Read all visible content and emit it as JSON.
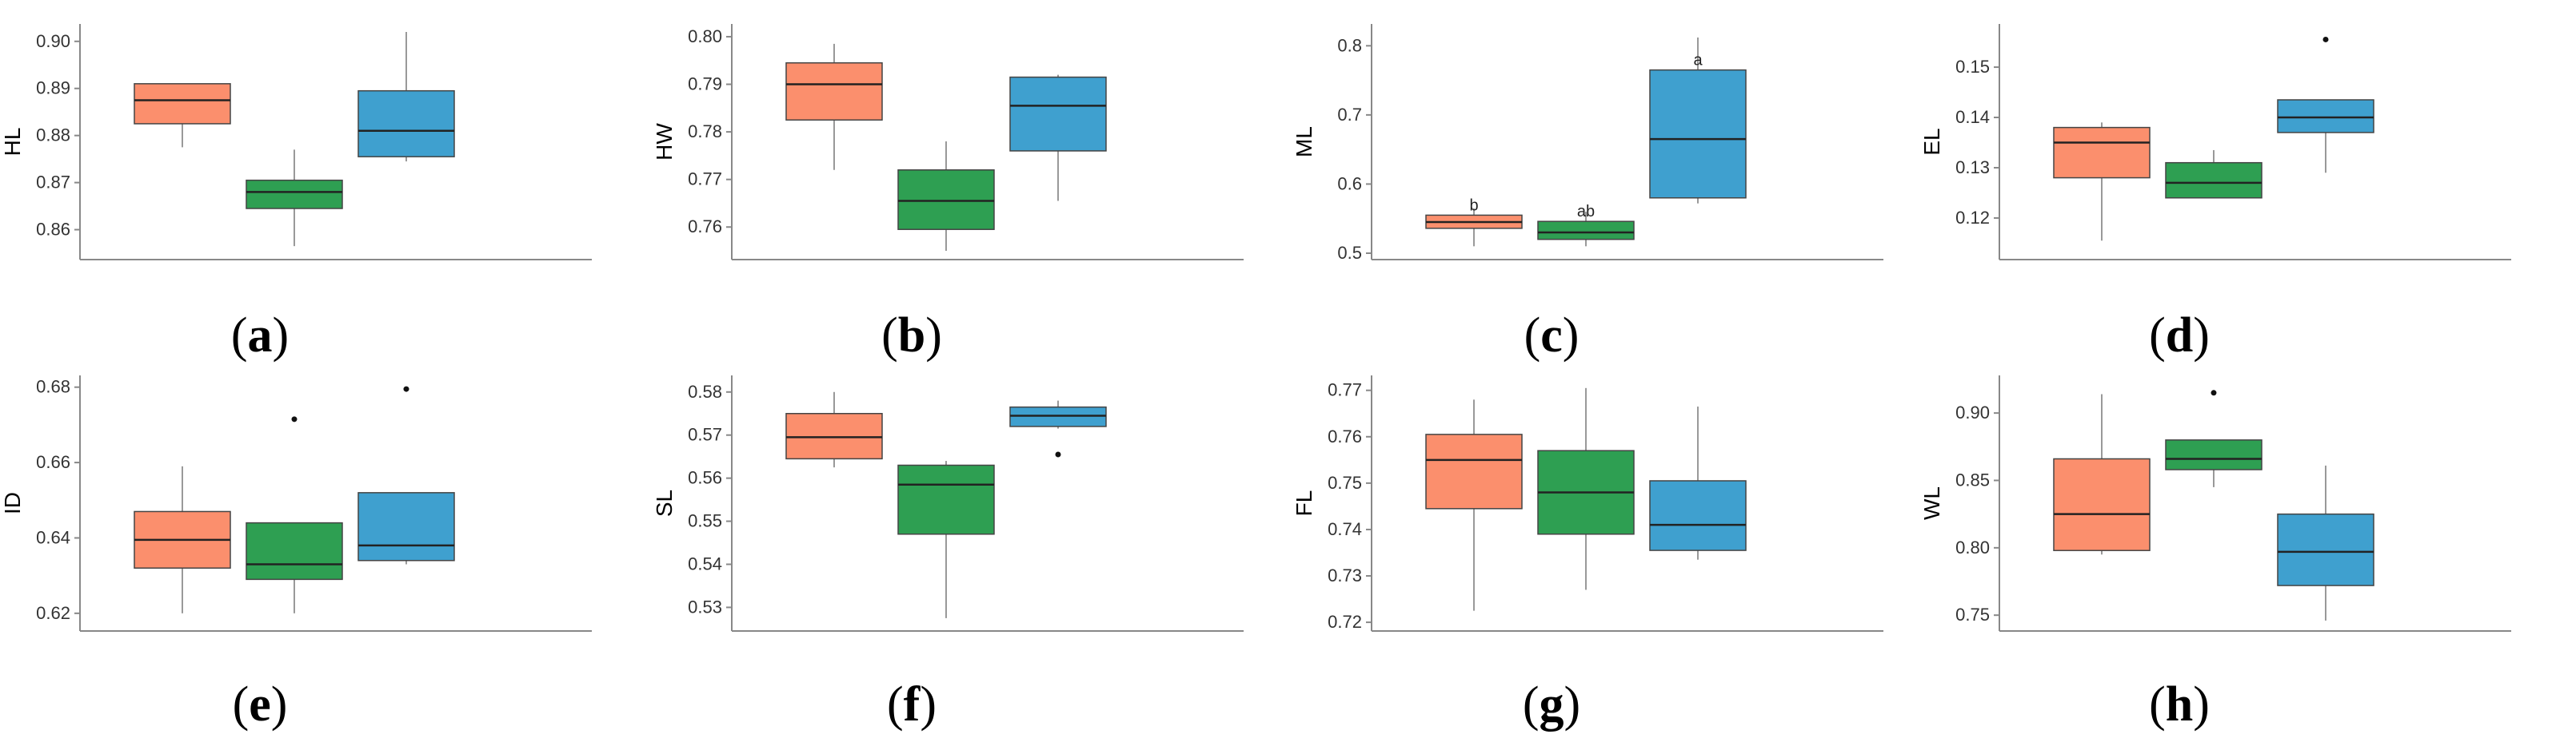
{
  "figure": {
    "group_colors": [
      "#fb8f6d",
      "#2e9f52",
      "#3fa0cf"
    ],
    "box_stroke": "#444444",
    "median_color": "#222222",
    "axis_color": "#888888"
  },
  "chart_data": [
    {
      "type": "box",
      "panel_label": "a",
      "ylabel": "HL",
      "ylim": [
        0.855,
        0.902
      ],
      "yticks": [
        "0.86",
        "0.87",
        "0.88",
        "0.89",
        "0.90"
      ],
      "ytick_values": [
        0.86,
        0.87,
        0.88,
        0.89,
        0.9
      ],
      "boxes": [
        {
          "q1": 0.8825,
          "median": 0.8875,
          "q3": 0.891,
          "whisker_low": 0.8775,
          "whisker_high": 0.891,
          "outliers": [],
          "label": ""
        },
        {
          "q1": 0.8645,
          "median": 0.868,
          "q3": 0.8705,
          "whisker_low": 0.8565,
          "whisker_high": 0.877,
          "outliers": [],
          "label": ""
        },
        {
          "q1": 0.8755,
          "median": 0.881,
          "q3": 0.8895,
          "whisker_low": 0.8745,
          "whisker_high": 0.902,
          "outliers": [],
          "label": ""
        }
      ]
    },
    {
      "type": "box",
      "panel_label": "b",
      "ylabel": "HW",
      "ylim": [
        0.7545,
        0.801
      ],
      "yticks": [
        "0.76",
        "0.77",
        "0.78",
        "0.79",
        "0.80"
      ],
      "ytick_values": [
        0.76,
        0.77,
        0.78,
        0.79,
        0.8
      ],
      "boxes": [
        {
          "q1": 0.7825,
          "median": 0.79,
          "q3": 0.7945,
          "whisker_low": 0.772,
          "whisker_high": 0.7985,
          "outliers": [],
          "label": ""
        },
        {
          "q1": 0.7595,
          "median": 0.7655,
          "q3": 0.772,
          "whisker_low": 0.755,
          "whisker_high": 0.778,
          "outliers": [],
          "label": ""
        },
        {
          "q1": 0.776,
          "median": 0.7855,
          "q3": 0.7915,
          "whisker_low": 0.7655,
          "whisker_high": 0.792,
          "outliers": [],
          "label": ""
        }
      ]
    },
    {
      "type": "box",
      "panel_label": "c",
      "ylabel": "ML",
      "ylim": [
        0.5,
        0.82
      ],
      "yticks": [
        "0.5",
        "0.6",
        "0.7",
        "0.8"
      ],
      "ytick_values": [
        0.5,
        0.6,
        0.7,
        0.8
      ],
      "boxes": [
        {
          "q1": 0.536,
          "median": 0.545,
          "q3": 0.555,
          "whisker_low": 0.51,
          "whisker_high": 0.565,
          "outliers": [],
          "label": "b"
        },
        {
          "q1": 0.52,
          "median": 0.53,
          "q3": 0.546,
          "whisker_low": 0.51,
          "whisker_high": 0.56,
          "outliers": [],
          "label": "ab"
        },
        {
          "q1": 0.58,
          "median": 0.665,
          "q3": 0.765,
          "whisker_low": 0.572,
          "whisker_high": 0.812,
          "outliers": [],
          "label": "a"
        }
      ]
    },
    {
      "type": "box",
      "panel_label": "d",
      "ylabel": "EL",
      "ylim": [
        0.113,
        0.157
      ],
      "yticks": [
        "0.12",
        "0.13",
        "0.14",
        "0.15"
      ],
      "ytick_values": [
        0.12,
        0.13,
        0.14,
        0.15
      ],
      "boxes": [
        {
          "q1": 0.128,
          "median": 0.135,
          "q3": 0.138,
          "whisker_low": 0.1155,
          "whisker_high": 0.139,
          "outliers": [],
          "label": ""
        },
        {
          "q1": 0.124,
          "median": 0.127,
          "q3": 0.131,
          "whisker_low": 0.124,
          "whisker_high": 0.1335,
          "outliers": [],
          "label": ""
        },
        {
          "q1": 0.137,
          "median": 0.14,
          "q3": 0.1435,
          "whisker_low": 0.129,
          "whisker_high": 0.1435,
          "outliers": [
            0.1555
          ],
          "label": ""
        }
      ]
    },
    {
      "type": "box",
      "panel_label": "e",
      "ylabel": "ID",
      "ylim": [
        0.617,
        0.681
      ],
      "yticks": [
        "0.62",
        "0.64",
        "0.66",
        "0.68"
      ],
      "ytick_values": [
        0.62,
        0.64,
        0.66,
        0.68
      ],
      "boxes": [
        {
          "q1": 0.632,
          "median": 0.6395,
          "q3": 0.647,
          "whisker_low": 0.62,
          "whisker_high": 0.659,
          "outliers": [],
          "label": ""
        },
        {
          "q1": 0.629,
          "median": 0.633,
          "q3": 0.644,
          "whisker_low": 0.62,
          "whisker_high": 0.644,
          "outliers": [
            0.6715
          ],
          "label": ""
        },
        {
          "q1": 0.634,
          "median": 0.638,
          "q3": 0.652,
          "whisker_low": 0.633,
          "whisker_high": 0.652,
          "outliers": [
            0.6795
          ],
          "label": ""
        }
      ]
    },
    {
      "type": "box",
      "panel_label": "f",
      "ylabel": "SL",
      "ylim": [
        0.526,
        0.582
      ],
      "yticks": [
        "0.53",
        "0.54",
        "0.55",
        "0.56",
        "0.57",
        "0.58"
      ],
      "ytick_values": [
        0.53,
        0.54,
        0.55,
        0.56,
        0.57,
        0.58
      ],
      "boxes": [
        {
          "q1": 0.5645,
          "median": 0.5695,
          "q3": 0.575,
          "whisker_low": 0.5625,
          "whisker_high": 0.58,
          "outliers": [],
          "label": ""
        },
        {
          "q1": 0.547,
          "median": 0.5585,
          "q3": 0.563,
          "whisker_low": 0.5275,
          "whisker_high": 0.564,
          "outliers": [],
          "label": ""
        },
        {
          "q1": 0.572,
          "median": 0.5745,
          "q3": 0.5765,
          "whisker_low": 0.5715,
          "whisker_high": 0.578,
          "outliers": [
            0.5655
          ],
          "label": ""
        }
      ]
    },
    {
      "type": "box",
      "panel_label": "g",
      "ylabel": "FL",
      "ylim": [
        0.7195,
        0.7715
      ],
      "yticks": [
        "0.72",
        "0.73",
        "0.74",
        "0.75",
        "0.76",
        "0.77"
      ],
      "ytick_values": [
        0.72,
        0.73,
        0.74,
        0.75,
        0.76,
        0.77
      ],
      "boxes": [
        {
          "q1": 0.7445,
          "median": 0.755,
          "q3": 0.7605,
          "whisker_low": 0.7225,
          "whisker_high": 0.768,
          "outliers": [],
          "label": ""
        },
        {
          "q1": 0.739,
          "median": 0.748,
          "q3": 0.757,
          "whisker_low": 0.727,
          "whisker_high": 0.7705,
          "outliers": [],
          "label": ""
        },
        {
          "q1": 0.7355,
          "median": 0.741,
          "q3": 0.7505,
          "whisker_low": 0.7335,
          "whisker_high": 0.7665,
          "outliers": [],
          "label": ""
        }
      ]
    },
    {
      "type": "box",
      "panel_label": "h",
      "ylabel": "WL",
      "ylim": [
        0.743,
        0.922
      ],
      "yticks": [
        "0.75",
        "0.80",
        "0.85",
        "0.90"
      ],
      "ytick_values": [
        0.75,
        0.8,
        0.85,
        0.9
      ],
      "boxes": [
        {
          "q1": 0.798,
          "median": 0.825,
          "q3": 0.866,
          "whisker_low": 0.795,
          "whisker_high": 0.914,
          "outliers": [],
          "label": ""
        },
        {
          "q1": 0.858,
          "median": 0.866,
          "q3": 0.88,
          "whisker_low": 0.845,
          "whisker_high": 0.88,
          "outliers": [
            0.915
          ],
          "label": ""
        },
        {
          "q1": 0.772,
          "median": 0.797,
          "q3": 0.825,
          "whisker_low": 0.746,
          "whisker_high": 0.861,
          "outliers": [],
          "label": ""
        }
      ]
    }
  ]
}
